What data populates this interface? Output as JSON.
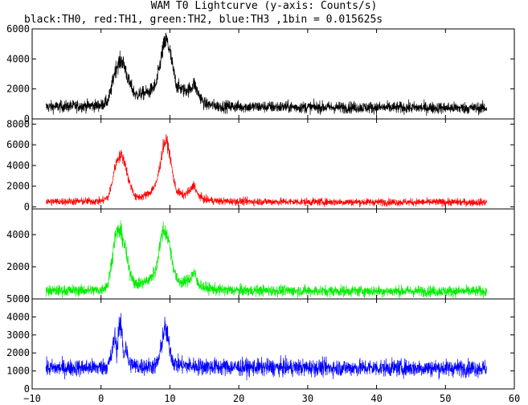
{
  "chart_data": {
    "type": "line",
    "title": "WAM T0 Lightcurve (y-axis: Counts/s)",
    "subtitle": "black:TH0, red:TH1, green:TH2, blue:TH3 ,1bin = 0.015625s",
    "xlabel": "",
    "ylabel": "",
    "xlim": [
      -10,
      60
    ],
    "x_ticks": [
      -10,
      0,
      10,
      20,
      30,
      40,
      50,
      60
    ],
    "x_tick_labels": [
      "−10",
      "0",
      "10",
      "20",
      "30",
      "40",
      "50",
      "60"
    ],
    "bin_size_s": 0.015625,
    "data_x_range": [
      -8,
      56
    ],
    "grid": false,
    "panels": [
      {
        "name": "TH0",
        "color": "#000000",
        "ylim": [
          0,
          6000
        ],
        "y_ticks": [
          0,
          2000,
          4000,
          6000
        ],
        "y_tick_labels": [
          "0",
          "2000",
          "4000",
          "6000"
        ],
        "envelope": {
          "x": [
            -8,
            0,
            1,
            1.5,
            2,
            2.5,
            3,
            3.5,
            4,
            5,
            6,
            7,
            8,
            8.5,
            9,
            9.5,
            10,
            10.5,
            11,
            12,
            13,
            13.5,
            14,
            15,
            17,
            20,
            30,
            40,
            50,
            56
          ],
          "y": [
            800,
            900,
            1200,
            2000,
            3200,
            3700,
            3900,
            3400,
            2500,
            1600,
            1700,
            1800,
            2300,
            3500,
            4700,
            5300,
            4500,
            3200,
            2200,
            1900,
            2000,
            2400,
            1800,
            1000,
            850,
            820,
            780,
            760,
            740,
            720
          ]
        },
        "noise": 600
      },
      {
        "name": "TH1",
        "color": "#ff0000",
        "ylim": [
          -200,
          8500
        ],
        "y_ticks": [
          0,
          2000,
          4000,
          6000,
          8000
        ],
        "y_tick_labels": [
          "0",
          "2000",
          "4000",
          "6000",
          "8000"
        ],
        "envelope": {
          "x": [
            -8,
            0,
            1,
            1.5,
            2,
            2.5,
            3,
            3.5,
            4,
            5,
            6,
            7,
            8,
            8.5,
            9,
            9.5,
            10,
            10.5,
            11,
            12,
            13,
            13.5,
            14,
            15,
            17,
            20,
            30,
            40,
            50,
            56
          ],
          "y": [
            500,
            550,
            900,
            2000,
            3800,
            4800,
            5000,
            4200,
            2600,
            900,
            1000,
            1300,
            2200,
            3800,
            5800,
            6500,
            5000,
            2800,
            1500,
            1100,
            1600,
            2200,
            1200,
            700,
            550,
            520,
            480,
            460,
            450,
            440
          ]
        },
        "noise": 600
      },
      {
        "name": "TH2",
        "color": "#00ee00",
        "ylim": [
          0,
          5600
        ],
        "y_ticks": [
          0,
          2000,
          4000
        ],
        "y_tick_labels": [
          "0",
          "2000",
          "4000"
        ],
        "envelope": {
          "x": [
            -8,
            0,
            1,
            1.5,
            2,
            2.5,
            3,
            3.5,
            4,
            5,
            6,
            7,
            8,
            8.5,
            9,
            9.5,
            10,
            10.5,
            11,
            12,
            13,
            13.5,
            14,
            15,
            17,
            20,
            30,
            40,
            50,
            56
          ],
          "y": [
            500,
            550,
            900,
            2200,
            3800,
            4300,
            4000,
            3200,
            1900,
            900,
            1000,
            1200,
            1800,
            3300,
            4300,
            4100,
            3300,
            2000,
            1200,
            1000,
            1300,
            1700,
            1000,
            700,
            560,
            530,
            500,
            490,
            480,
            470
          ]
        },
        "noise": 550
      },
      {
        "name": "TH3",
        "color": "#0000ff",
        "ylim": [
          0,
          5000
        ],
        "y_ticks": [
          0,
          1000,
          2000,
          3000,
          4000,
          5000
        ],
        "y_tick_labels": [
          "0",
          "1000",
          "2000",
          "3000",
          "4000",
          "5000"
        ],
        "envelope": {
          "x": [
            -8,
            0,
            1,
            1.5,
            2,
            2.3,
            2.6,
            3,
            3.3,
            3.6,
            4,
            5,
            7,
            8,
            8.5,
            9,
            9.3,
            9.6,
            10,
            10.5,
            11,
            12,
            14,
            20,
            30,
            40,
            50,
            56
          ],
          "y": [
            1150,
            1200,
            1300,
            1800,
            3000,
            2000,
            3600,
            3200,
            1800,
            2400,
            1500,
            1250,
            1250,
            1300,
            1800,
            3000,
            3400,
            3000,
            2200,
            1500,
            1350,
            1300,
            1250,
            1200,
            1180,
            1170,
            1160,
            1150
          ]
        },
        "noise": 650
      }
    ]
  }
}
